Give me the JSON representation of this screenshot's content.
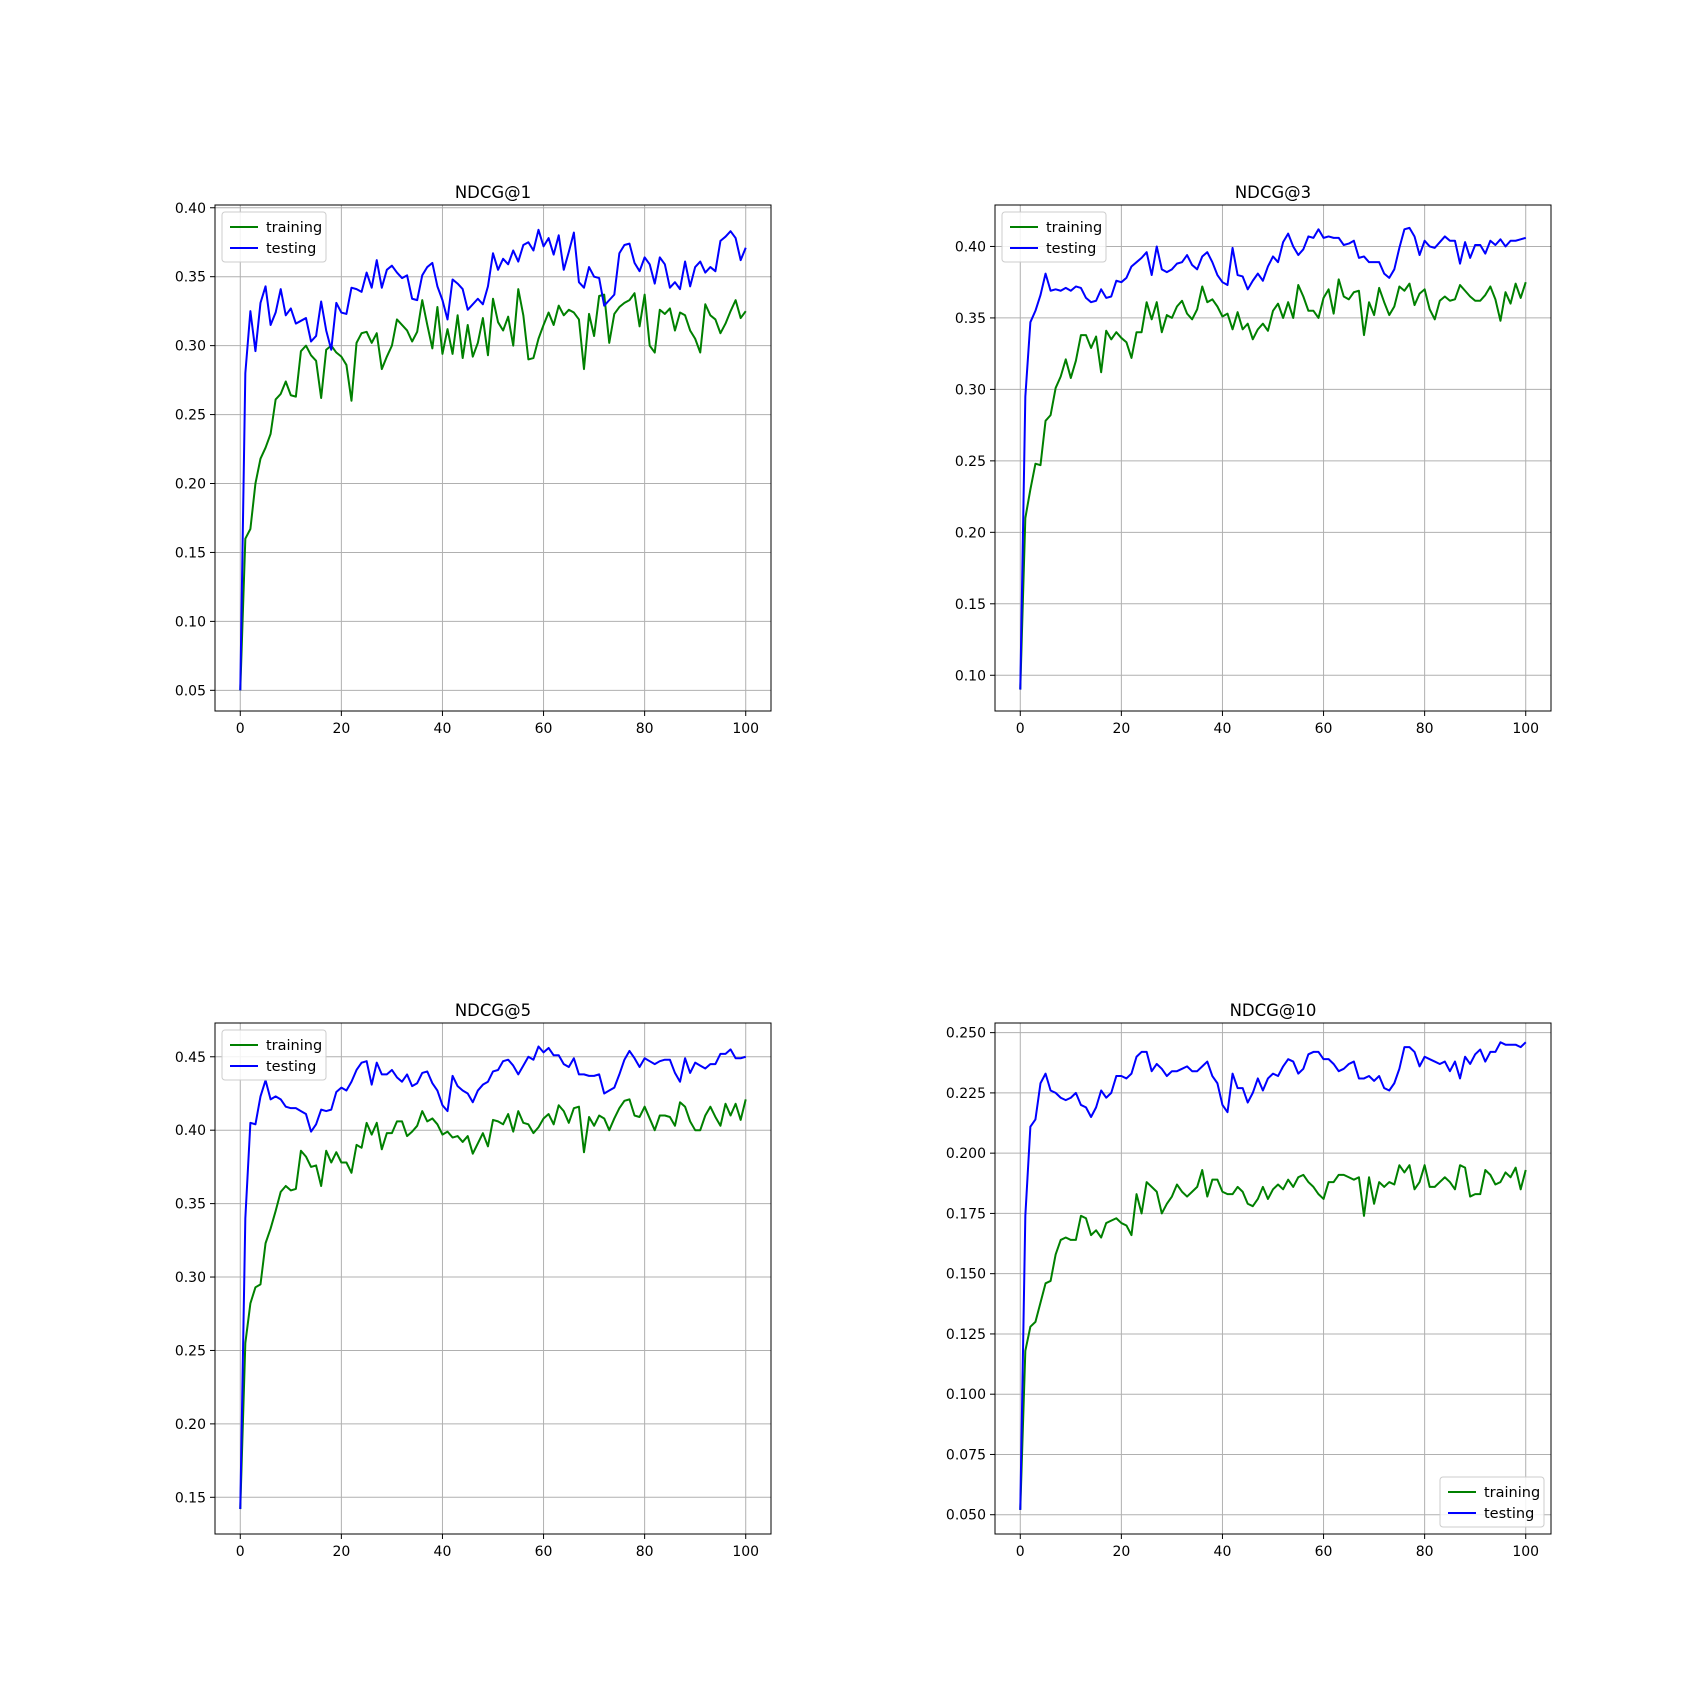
{
  "colors": {
    "training": "#008000",
    "testing": "#0000ff",
    "grid": "#b0b0b0",
    "axes": "#000000",
    "background": "#ffffff"
  },
  "chart_data": [
    {
      "type": "line",
      "title": "NDCG@1",
      "xlim": [
        -5,
        105
      ],
      "ylim": [
        0.035,
        0.402
      ],
      "xticks": [
        0,
        20,
        40,
        60,
        80,
        100
      ],
      "xtick_labels": [
        "0",
        "20",
        "40",
        "60",
        "80",
        "100"
      ],
      "yticks": [
        0.05,
        0.1,
        0.15,
        0.2,
        0.25,
        0.3,
        0.35,
        0.4
      ],
      "ytick_labels": [
        "0.05",
        "0.10",
        "0.15",
        "0.20",
        "0.25",
        "0.30",
        "0.35",
        "0.40"
      ],
      "grid": true,
      "legend_position": "upper-left",
      "series": [
        {
          "name": "training",
          "color": "#008000",
          "values": [
            0.05,
            0.16,
            0.167,
            0.2,
            0.218,
            0.226,
            0.236,
            0.261,
            0.265,
            0.274,
            0.264,
            0.263,
            0.296,
            0.3,
            0.293,
            0.289,
            0.262,
            0.297,
            0.3,
            0.295,
            0.292,
            0.286,
            0.26,
            0.302,
            0.309,
            0.31,
            0.302,
            0.309,
            0.283,
            0.292,
            0.3,
            0.319,
            0.315,
            0.311,
            0.303,
            0.31,
            0.333,
            0.315,
            0.298,
            0.328,
            0.294,
            0.312,
            0.294,
            0.322,
            0.291,
            0.315,
            0.292,
            0.302,
            0.32,
            0.293,
            0.334,
            0.317,
            0.311,
            0.321,
            0.3,
            0.341,
            0.322,
            0.29,
            0.291,
            0.305,
            0.315,
            0.324,
            0.315,
            0.329,
            0.322,
            0.326,
            0.324,
            0.319,
            0.283,
            0.323,
            0.307,
            0.336,
            0.337,
            0.302,
            0.323,
            0.328,
            0.331,
            0.333,
            0.338,
            0.314,
            0.337,
            0.3,
            0.295,
            0.326,
            0.323,
            0.327,
            0.311,
            0.324,
            0.322,
            0.311,
            0.305,
            0.295,
            0.33,
            0.322,
            0.319,
            0.309,
            0.316,
            0.325,
            0.333,
            0.32,
            0.325
          ]
        },
        {
          "name": "testing",
          "color": "#0000ff",
          "values": [
            0.05,
            0.28,
            0.325,
            0.296,
            0.331,
            0.343,
            0.315,
            0.324,
            0.341,
            0.322,
            0.327,
            0.316,
            0.318,
            0.32,
            0.303,
            0.307,
            0.332,
            0.311,
            0.297,
            0.331,
            0.324,
            0.323,
            0.342,
            0.341,
            0.339,
            0.353,
            0.342,
            0.362,
            0.342,
            0.355,
            0.358,
            0.353,
            0.349,
            0.351,
            0.334,
            0.333,
            0.351,
            0.357,
            0.36,
            0.343,
            0.333,
            0.319,
            0.348,
            0.345,
            0.341,
            0.326,
            0.33,
            0.334,
            0.33,
            0.343,
            0.367,
            0.355,
            0.363,
            0.359,
            0.369,
            0.361,
            0.373,
            0.375,
            0.369,
            0.384,
            0.372,
            0.378,
            0.366,
            0.38,
            0.355,
            0.368,
            0.382,
            0.346,
            0.342,
            0.357,
            0.35,
            0.349,
            0.329,
            0.333,
            0.337,
            0.367,
            0.373,
            0.374,
            0.36,
            0.354,
            0.364,
            0.359,
            0.345,
            0.364,
            0.359,
            0.342,
            0.346,
            0.341,
            0.361,
            0.343,
            0.357,
            0.361,
            0.353,
            0.357,
            0.354,
            0.376,
            0.379,
            0.383,
            0.378,
            0.362,
            0.371
          ]
        }
      ]
    },
    {
      "type": "line",
      "title": "NDCG@3",
      "xlim": [
        -5,
        105
      ],
      "ylim": [
        0.075,
        0.429
      ],
      "xticks": [
        0,
        20,
        40,
        60,
        80,
        100
      ],
      "xtick_labels": [
        "0",
        "20",
        "40",
        "60",
        "80",
        "100"
      ],
      "yticks": [
        0.1,
        0.15,
        0.2,
        0.25,
        0.3,
        0.35,
        0.4
      ],
      "ytick_labels": [
        "0.10",
        "0.15",
        "0.20",
        "0.25",
        "0.30",
        "0.35",
        "0.40"
      ],
      "grid": true,
      "legend_position": "upper-left",
      "series": [
        {
          "name": "training",
          "color": "#008000",
          "values": [
            0.09,
            0.21,
            0.23,
            0.248,
            0.247,
            0.278,
            0.282,
            0.301,
            0.309,
            0.321,
            0.308,
            0.32,
            0.338,
            0.338,
            0.329,
            0.337,
            0.312,
            0.341,
            0.335,
            0.34,
            0.336,
            0.333,
            0.322,
            0.34,
            0.34,
            0.361,
            0.349,
            0.361,
            0.34,
            0.352,
            0.35,
            0.358,
            0.362,
            0.353,
            0.349,
            0.356,
            0.372,
            0.361,
            0.363,
            0.358,
            0.351,
            0.353,
            0.342,
            0.354,
            0.342,
            0.346,
            0.335,
            0.342,
            0.346,
            0.341,
            0.355,
            0.36,
            0.35,
            0.361,
            0.35,
            0.373,
            0.365,
            0.355,
            0.355,
            0.35,
            0.364,
            0.37,
            0.353,
            0.377,
            0.365,
            0.363,
            0.368,
            0.369,
            0.338,
            0.361,
            0.352,
            0.371,
            0.361,
            0.352,
            0.358,
            0.372,
            0.369,
            0.374,
            0.359,
            0.367,
            0.37,
            0.356,
            0.349,
            0.362,
            0.365,
            0.362,
            0.363,
            0.373,
            0.369,
            0.365,
            0.362,
            0.362,
            0.366,
            0.372,
            0.363,
            0.348,
            0.368,
            0.36,
            0.374,
            0.364,
            0.375
          ]
        },
        {
          "name": "testing",
          "color": "#0000ff",
          "values": [
            0.09,
            0.295,
            0.347,
            0.355,
            0.366,
            0.381,
            0.369,
            0.37,
            0.369,
            0.371,
            0.369,
            0.372,
            0.371,
            0.364,
            0.361,
            0.362,
            0.37,
            0.364,
            0.365,
            0.376,
            0.375,
            0.378,
            0.386,
            0.389,
            0.392,
            0.396,
            0.38,
            0.4,
            0.384,
            0.382,
            0.384,
            0.388,
            0.389,
            0.394,
            0.387,
            0.384,
            0.393,
            0.396,
            0.389,
            0.38,
            0.375,
            0.373,
            0.399,
            0.38,
            0.379,
            0.37,
            0.376,
            0.381,
            0.376,
            0.386,
            0.393,
            0.389,
            0.403,
            0.409,
            0.4,
            0.394,
            0.398,
            0.407,
            0.406,
            0.412,
            0.406,
            0.407,
            0.406,
            0.406,
            0.401,
            0.402,
            0.404,
            0.392,
            0.393,
            0.389,
            0.389,
            0.389,
            0.381,
            0.378,
            0.384,
            0.399,
            0.412,
            0.413,
            0.407,
            0.394,
            0.404,
            0.4,
            0.399,
            0.403,
            0.407,
            0.404,
            0.404,
            0.388,
            0.403,
            0.392,
            0.401,
            0.401,
            0.395,
            0.404,
            0.401,
            0.405,
            0.4,
            0.404,
            0.404,
            0.405,
            0.406
          ]
        }
      ]
    },
    {
      "type": "line",
      "title": "NDCG@5",
      "xlim": [
        -5,
        105
      ],
      "ylim": [
        0.125,
        0.473
      ],
      "xticks": [
        0,
        20,
        40,
        60,
        80,
        100
      ],
      "xtick_labels": [
        "0",
        "20",
        "40",
        "60",
        "80",
        "100"
      ],
      "yticks": [
        0.15,
        0.2,
        0.25,
        0.3,
        0.35,
        0.4,
        0.45
      ],
      "ytick_labels": [
        "0.15",
        "0.20",
        "0.25",
        "0.30",
        "0.35",
        "0.40",
        "0.45"
      ],
      "grid": true,
      "legend_position": "upper-left",
      "series": [
        {
          "name": "training",
          "color": "#008000",
          "values": [
            0.142,
            0.255,
            0.282,
            0.293,
            0.295,
            0.323,
            0.333,
            0.345,
            0.358,
            0.362,
            0.359,
            0.36,
            0.386,
            0.382,
            0.375,
            0.376,
            0.362,
            0.386,
            0.378,
            0.385,
            0.378,
            0.378,
            0.371,
            0.39,
            0.388,
            0.405,
            0.397,
            0.405,
            0.387,
            0.398,
            0.398,
            0.406,
            0.406,
            0.396,
            0.399,
            0.403,
            0.413,
            0.406,
            0.408,
            0.404,
            0.397,
            0.399,
            0.395,
            0.396,
            0.392,
            0.396,
            0.384,
            0.391,
            0.398,
            0.389,
            0.407,
            0.406,
            0.404,
            0.411,
            0.399,
            0.413,
            0.405,
            0.404,
            0.398,
            0.402,
            0.408,
            0.411,
            0.404,
            0.417,
            0.413,
            0.405,
            0.415,
            0.416,
            0.385,
            0.409,
            0.403,
            0.41,
            0.408,
            0.4,
            0.408,
            0.415,
            0.42,
            0.421,
            0.41,
            0.409,
            0.416,
            0.408,
            0.4,
            0.41,
            0.41,
            0.409,
            0.403,
            0.419,
            0.416,
            0.406,
            0.4,
            0.4,
            0.41,
            0.416,
            0.409,
            0.403,
            0.418,
            0.41,
            0.418,
            0.407,
            0.421
          ]
        },
        {
          "name": "testing",
          "color": "#0000ff",
          "values": [
            0.142,
            0.34,
            0.405,
            0.404,
            0.423,
            0.434,
            0.421,
            0.423,
            0.421,
            0.416,
            0.415,
            0.415,
            0.413,
            0.411,
            0.399,
            0.404,
            0.414,
            0.413,
            0.414,
            0.426,
            0.429,
            0.427,
            0.433,
            0.441,
            0.446,
            0.447,
            0.431,
            0.446,
            0.438,
            0.438,
            0.441,
            0.436,
            0.433,
            0.438,
            0.43,
            0.432,
            0.439,
            0.44,
            0.432,
            0.427,
            0.417,
            0.413,
            0.437,
            0.43,
            0.427,
            0.425,
            0.419,
            0.427,
            0.431,
            0.433,
            0.44,
            0.441,
            0.447,
            0.448,
            0.444,
            0.438,
            0.444,
            0.45,
            0.448,
            0.457,
            0.453,
            0.456,
            0.451,
            0.451,
            0.445,
            0.443,
            0.449,
            0.438,
            0.438,
            0.437,
            0.437,
            0.438,
            0.425,
            0.427,
            0.429,
            0.438,
            0.448,
            0.454,
            0.449,
            0.443,
            0.449,
            0.447,
            0.445,
            0.447,
            0.448,
            0.448,
            0.439,
            0.433,
            0.449,
            0.439,
            0.446,
            0.444,
            0.442,
            0.445,
            0.445,
            0.452,
            0.452,
            0.455,
            0.449,
            0.449,
            0.45
          ]
        }
      ]
    },
    {
      "type": "line",
      "title": "NDCG@10",
      "xlim": [
        -5,
        105
      ],
      "ylim": [
        0.042,
        0.254
      ],
      "xticks": [
        0,
        20,
        40,
        60,
        80,
        100
      ],
      "xtick_labels": [
        "0",
        "20",
        "40",
        "60",
        "80",
        "100"
      ],
      "yticks": [
        0.05,
        0.075,
        0.1,
        0.125,
        0.15,
        0.175,
        0.2,
        0.225,
        0.25
      ],
      "ytick_labels": [
        "0.050",
        "0.075",
        "0.100",
        "0.125",
        "0.150",
        "0.175",
        "0.200",
        "0.225",
        "0.250"
      ],
      "grid": true,
      "legend_position": "lower-right",
      "series": [
        {
          "name": "training",
          "color": "#008000",
          "values": [
            0.052,
            0.118,
            0.128,
            0.13,
            0.138,
            0.146,
            0.147,
            0.158,
            0.164,
            0.165,
            0.164,
            0.164,
            0.174,
            0.173,
            0.166,
            0.168,
            0.165,
            0.171,
            0.172,
            0.173,
            0.171,
            0.17,
            0.166,
            0.183,
            0.175,
            0.188,
            0.186,
            0.184,
            0.175,
            0.179,
            0.182,
            0.187,
            0.184,
            0.182,
            0.184,
            0.186,
            0.193,
            0.182,
            0.189,
            0.189,
            0.184,
            0.183,
            0.183,
            0.186,
            0.184,
            0.179,
            0.178,
            0.181,
            0.186,
            0.181,
            0.185,
            0.187,
            0.185,
            0.189,
            0.186,
            0.19,
            0.191,
            0.188,
            0.186,
            0.183,
            0.181,
            0.188,
            0.188,
            0.191,
            0.191,
            0.19,
            0.189,
            0.19,
            0.174,
            0.19,
            0.179,
            0.188,
            0.186,
            0.188,
            0.187,
            0.195,
            0.192,
            0.195,
            0.185,
            0.188,
            0.195,
            0.186,
            0.186,
            0.188,
            0.19,
            0.188,
            0.185,
            0.195,
            0.194,
            0.182,
            0.183,
            0.183,
            0.193,
            0.191,
            0.187,
            0.188,
            0.192,
            0.19,
            0.194,
            0.185,
            0.193
          ]
        },
        {
          "name": "testing",
          "color": "#0000ff",
          "values": [
            0.052,
            0.174,
            0.211,
            0.214,
            0.229,
            0.233,
            0.226,
            0.225,
            0.223,
            0.222,
            0.223,
            0.225,
            0.22,
            0.219,
            0.215,
            0.219,
            0.226,
            0.223,
            0.225,
            0.232,
            0.232,
            0.231,
            0.233,
            0.24,
            0.242,
            0.242,
            0.234,
            0.237,
            0.235,
            0.232,
            0.234,
            0.234,
            0.235,
            0.236,
            0.234,
            0.234,
            0.236,
            0.238,
            0.232,
            0.229,
            0.22,
            0.217,
            0.233,
            0.227,
            0.227,
            0.221,
            0.225,
            0.231,
            0.226,
            0.231,
            0.233,
            0.232,
            0.236,
            0.239,
            0.238,
            0.233,
            0.235,
            0.241,
            0.242,
            0.242,
            0.239,
            0.239,
            0.237,
            0.234,
            0.235,
            0.237,
            0.238,
            0.231,
            0.231,
            0.232,
            0.23,
            0.232,
            0.227,
            0.226,
            0.229,
            0.235,
            0.244,
            0.244,
            0.242,
            0.236,
            0.24,
            0.239,
            0.238,
            0.237,
            0.238,
            0.234,
            0.238,
            0.231,
            0.24,
            0.237,
            0.241,
            0.243,
            0.238,
            0.242,
            0.242,
            0.246,
            0.245,
            0.245,
            0.245,
            0.244,
            0.246
          ]
        }
      ]
    }
  ]
}
